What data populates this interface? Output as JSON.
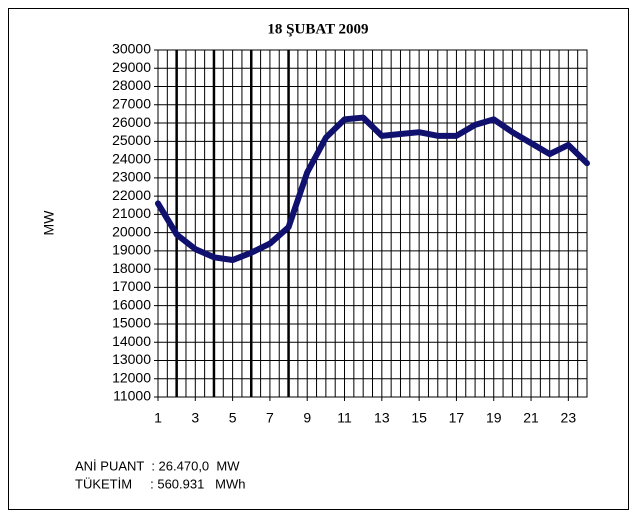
{
  "chart_data": {
    "type": "line",
    "title": "18 ŞUBAT 2009",
    "y_label": "MW",
    "x": [
      1,
      2,
      3,
      4,
      5,
      6,
      7,
      8,
      9,
      10,
      11,
      12,
      13,
      14,
      15,
      16,
      17,
      18,
      19,
      20,
      21,
      22,
      23,
      24
    ],
    "series": [
      {
        "name": "MW",
        "color": "#10106e",
        "values": [
          21600,
          19900,
          19100,
          18650,
          18500,
          18900,
          19400,
          20300,
          23300,
          25200,
          26200,
          26300,
          25300,
          25400,
          25500,
          25300,
          25300,
          25900,
          26200,
          25500,
          24900,
          24300,
          24800,
          23800
        ]
      }
    ],
    "xlim": [
      1,
      24
    ],
    "xticks": [
      1,
      3,
      5,
      7,
      9,
      11,
      13,
      15,
      17,
      19,
      21,
      23
    ],
    "x_grid_step": 0.5,
    "x_major_lines": [
      2,
      4,
      6,
      8
    ],
    "ylim": [
      11000,
      30000
    ],
    "yticks": [
      11000,
      12000,
      13000,
      14000,
      15000,
      16000,
      17000,
      18000,
      19000,
      20000,
      21000,
      22000,
      23000,
      24000,
      25000,
      26000,
      27000,
      28000,
      29000,
      30000
    ],
    "grid": true,
    "notes": [
      "ANİ PUANT  : 26.470,0  MW",
      "TÜKETİM     : 560.931   MWh"
    ]
  }
}
